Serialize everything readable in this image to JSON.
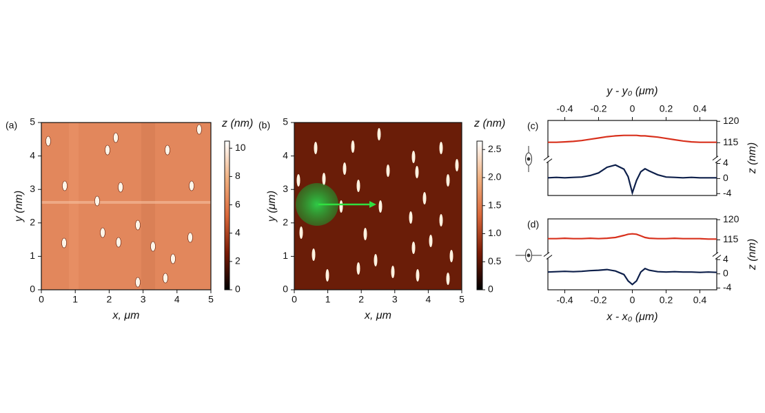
{
  "chart_data": [
    {
      "type": "image",
      "panel": "(a)",
      "xlabel": "x, μm",
      "ylabel": "y (nm)",
      "xlim": [
        0,
        5
      ],
      "ylim": [
        0,
        5
      ],
      "xticks": [
        0,
        1,
        2,
        3,
        4,
        5
      ],
      "yticks": [
        0,
        1,
        2,
        3,
        4,
        5
      ],
      "image_color": "#e2875c",
      "colorbar": {
        "label": "z (nm)",
        "lim": [
          0,
          10.5
        ],
        "ticks": [
          0,
          2,
          4,
          6,
          8,
          10
        ],
        "colors": [
          "#000000",
          "#7a1a05",
          "#d9673a",
          "#f0b080",
          "#ffffff"
        ]
      }
    },
    {
      "type": "image",
      "panel": "(b)",
      "xlabel": "x, μm",
      "ylabel": "y (μm)",
      "xlim": [
        0,
        5
      ],
      "ylim": [
        0,
        5
      ],
      "xticks": [
        0,
        1,
        2,
        3,
        4,
        5
      ],
      "yticks": [
        0,
        1,
        2,
        3,
        4,
        5
      ],
      "image_color": "#6a1d08",
      "colorbar": {
        "label": "z (nm)",
        "lim": [
          0,
          2.65
        ],
        "ticks": [
          0,
          0.5,
          {
            "value": 1,
            "label": "1.0"
          },
          1.5,
          {
            "value": 2,
            "label": "2.0"
          },
          2.5
        ],
        "colors": [
          "#000000",
          "#7a1a05",
          "#d9673a",
          "#f0b080",
          "#ffffff"
        ]
      }
    },
    {
      "type": "line",
      "panel": "(c)",
      "xlabel": "y - y₀ (μm)",
      "xaxis": "top",
      "ylabel": "z (nm)",
      "x": [
        -0.5,
        -0.45,
        -0.4,
        -0.35,
        -0.3,
        -0.25,
        -0.2,
        -0.15,
        -0.1,
        -0.05,
        -0.025,
        0,
        0.025,
        0.05,
        0.075,
        0.1,
        0.15,
        0.2,
        0.25,
        0.3,
        0.35,
        0.4,
        0.45,
        0.5
      ],
      "xlim": [
        -0.5,
        0.5
      ],
      "xticks": [
        -0.4,
        -0.2,
        0,
        0.2,
        0.4
      ],
      "ylim": [
        -4.5,
        4.7
      ],
      "yticks": [
        -4,
        0,
        4
      ],
      "y2lim": [
        111.4,
        120.2
      ],
      "y2ticks": [
        115,
        120
      ],
      "series": [
        {
          "color": "#d8301c",
          "axis": "y2",
          "values": [
            115.1,
            115.1,
            115.2,
            115.3,
            115.5,
            115.8,
            116.1,
            116.4,
            116.6,
            116.7,
            116.7,
            116.7,
            116.7,
            116.6,
            116.6,
            116.5,
            116.3,
            116.0,
            115.7,
            115.4,
            115.2,
            115.1,
            115.1,
            115.1
          ]
        },
        {
          "color": "#0d1f4a",
          "values": [
            0.2,
            0.3,
            0.2,
            0.3,
            0.4,
            0.8,
            1.5,
            3.0,
            3.6,
            2.5,
            0.5,
            -3.8,
            -0.5,
            1.8,
            2.6,
            2.0,
            1.0,
            0.4,
            0.3,
            0.2,
            0.3,
            0.2,
            0.2,
            0.2
          ]
        }
      ]
    },
    {
      "type": "line",
      "panel": "(d)",
      "xlabel": "x - x₀ (μm)",
      "xaxis": "bottom",
      "ylabel": "z (nm)",
      "x": [
        -0.5,
        -0.45,
        -0.4,
        -0.35,
        -0.3,
        -0.25,
        -0.2,
        -0.15,
        -0.1,
        -0.05,
        -0.025,
        0,
        0.025,
        0.05,
        0.075,
        0.1,
        0.15,
        0.2,
        0.25,
        0.3,
        0.35,
        0.4,
        0.45,
        0.5
      ],
      "xlim": [
        -0.5,
        0.5
      ],
      "xticks": [
        -0.4,
        -0.2,
        0,
        0.2,
        0.4
      ],
      "ylim": [
        -4.5,
        4.7
      ],
      "yticks": [
        -4,
        0,
        4
      ],
      "y2lim": [
        111.4,
        120.2
      ],
      "y2ticks": [
        115,
        120
      ],
      "series": [
        {
          "color": "#d8301c",
          "axis": "y2",
          "values": [
            115.3,
            115.3,
            115.4,
            115.3,
            115.3,
            115.4,
            115.3,
            115.4,
            115.6,
            116.1,
            116.4,
            116.5,
            116.4,
            116.0,
            115.6,
            115.4,
            115.3,
            115.3,
            115.4,
            115.3,
            115.3,
            115.3,
            115.2,
            115.2
          ]
        },
        {
          "color": "#0d1f4a",
          "values": [
            0.5,
            0.6,
            0.7,
            0.6,
            0.7,
            0.9,
            1.0,
            1.2,
            0.8,
            -0.2,
            -2.0,
            -3.0,
            -2.0,
            0.5,
            1.5,
            1.0,
            0.6,
            0.5,
            0.6,
            0.5,
            0.5,
            0.4,
            0.5,
            0.4
          ]
        }
      ]
    }
  ]
}
